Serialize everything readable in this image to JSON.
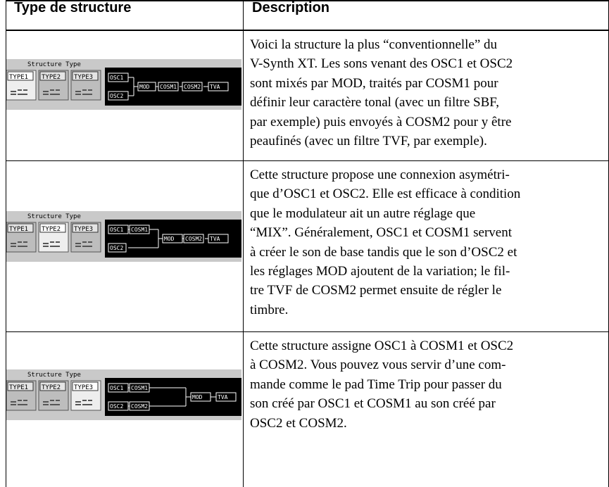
{
  "header": [
    "Type de structure",
    "Description"
  ],
  "rows": [
    {
      "image": {
        "label": "Structure Type",
        "tabs": [
          "TYPE1",
          "TYPE2",
          "TYPE3"
        ],
        "selected_tab": 0,
        "blocks": [
          "OSC1",
          "OSC2",
          "MOD",
          "COSM1",
          "COSM2",
          "TVA"
        ]
      },
      "description": [
        "Voici la structure la plus “conventionnelle” du",
        "V-Synth XT. Les sons venant des OSC1 et OSC2",
        "sont mixés par MOD, traités par COSM1 pour",
        "définir leur caractère tonal (avec un filtre SBF,",
        "par exemple) puis envoyés à COSM2 pour y être",
        "peaufinés (avec un filtre TVF, par exemple)."
      ]
    },
    {
      "image": {
        "label": "Structure Type",
        "tabs": [
          "TYPE1",
          "TYPE2",
          "TYPE3"
        ],
        "selected_tab": 1,
        "blocks": [
          "OSC1",
          "COSM1",
          "OSC2",
          "MOD",
          "COSM2",
          "TVA"
        ]
      },
      "description": [
        "Cette structure propose une connexion asymétri-",
        "que d’OSC1 et OSC2. Elle est efficace à condition",
        "que le modulateur ait un autre réglage que",
        "“MIX”. Généralement, OSC1 et COSM1 servent",
        "à créer le son de base tandis que le son d’OSC2 et",
        "les réglages MOD ajoutent de la variation; le fil-",
        "tre TVF de COSM2 permet ensuite de régler le",
        "timbre."
      ]
    },
    {
      "image": {
        "label": "Structure Type",
        "tabs": [
          "TYPE1",
          "TYPE2",
          "TYPE3"
        ],
        "selected_tab": 2,
        "blocks": [
          "OSC1",
          "COSM1",
          "OSC2",
          "COSM2",
          "MOD",
          "TVA"
        ]
      },
      "description": [
        "Cette structure assigne OSC1 à COSM1 et OSC2",
        "à COSM2. Vous pouvez vous servir d’une com-",
        "mande comme le pad Time Trip pour passer du",
        "son créé par OSC1 et COSM1 au son créé par",
        "OSC2 et COSM2."
      ]
    }
  ]
}
